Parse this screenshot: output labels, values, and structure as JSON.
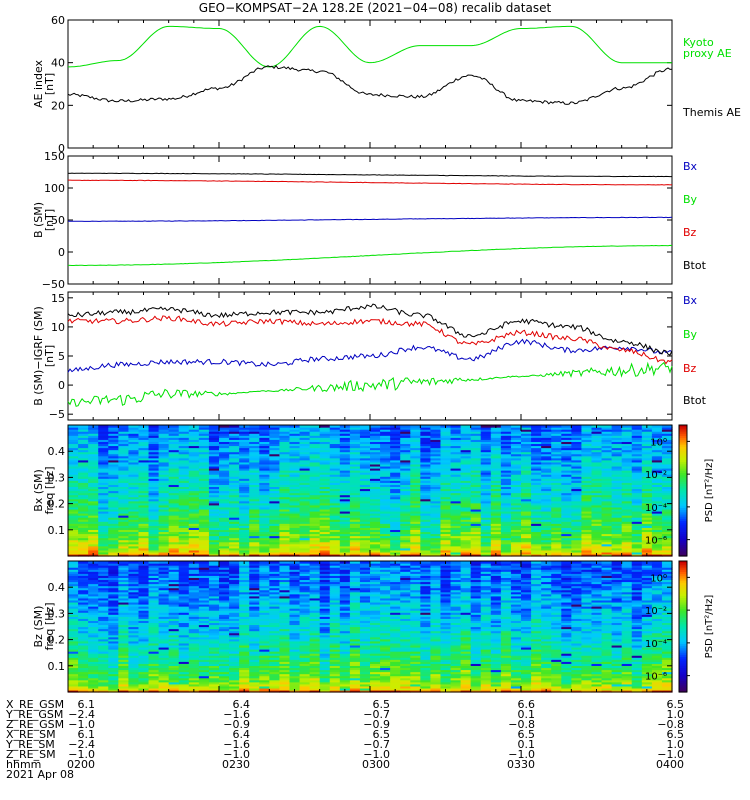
{
  "title": "GEO−KOMPSAT−2A 128.2E (2021−04−08) recalib dataset",
  "date": "2021 Apr 08",
  "colors": {
    "black": "#000000",
    "green": "#00e000",
    "blue": "#0000c0",
    "red": "#e00000"
  },
  "ephemeris": {
    "rows": [
      {
        "name": "X_RE_GSM",
        "values": [
          "6.1",
          "6.4",
          "6.5",
          "6.6",
          "6.5"
        ]
      },
      {
        "name": "Y_RE_GSM",
        "values": [
          "−2.4",
          "−1.6",
          "−0.7",
          "0.1",
          "1.0"
        ]
      },
      {
        "name": "Z_RE_GSM",
        "values": [
          "−1.0",
          "−0.9",
          "−0.9",
          "−0.8",
          "−0.8"
        ]
      },
      {
        "name": "X_RE_SM",
        "values": [
          "6.1",
          "6.4",
          "6.5",
          "6.5",
          "6.5"
        ]
      },
      {
        "name": "Y_RE_SM",
        "values": [
          "−2.4",
          "−1.6",
          "−0.7",
          "0.1",
          "1.0"
        ]
      },
      {
        "name": "Z_RE_SM",
        "values": [
          "−1.0",
          "−1.0",
          "−1.0",
          "−1.0",
          "−1.0"
        ]
      },
      {
        "name": "hhmm",
        "values": [
          "0200",
          "0230",
          "0300",
          "0330",
          "0400"
        ]
      }
    ]
  },
  "chart_data": [
    {
      "type": "line",
      "ylabel": [
        "AE index",
        "[nT]"
      ],
      "ylim": [
        0,
        60
      ],
      "yticks": [
        "0",
        "20",
        "40",
        "60"
      ],
      "x": [
        "0200",
        "0210",
        "0220",
        "0230",
        "0240",
        "0250",
        "0300",
        "0310",
        "0320",
        "0330",
        "0340",
        "0350",
        "0400"
      ],
      "series": [
        {
          "name": "Kyoto proxy AE",
          "legend": [
            "Kyoto",
            "proxy AE"
          ],
          "color": "green",
          "values": [
            38,
            41,
            57,
            56,
            38,
            57,
            40,
            48,
            48,
            56,
            57,
            40,
            40
          ]
        },
        {
          "name": "Themis AE",
          "legend": [
            "Themis AE"
          ],
          "color": "black",
          "values": [
            25,
            22,
            23,
            28,
            38,
            36,
            25,
            24,
            34,
            22,
            21,
            28,
            37
          ]
        }
      ]
    },
    {
      "type": "line",
      "ylabel": [
        "B (SM)",
        "[nT]"
      ],
      "ylim": [
        -50,
        150
      ],
      "yticks": [
        "−50",
        "0",
        "50",
        "100",
        "150"
      ],
      "x": [
        "0200",
        "0400"
      ],
      "series": [
        {
          "name": "Bx",
          "legend": [
            "Bx"
          ],
          "color": "blue",
          "values": [
            48,
            54
          ]
        },
        {
          "name": "By",
          "legend": [
            "By"
          ],
          "color": "green",
          "values": [
            -21,
            10
          ]
        },
        {
          "name": "Bz",
          "legend": [
            "Bz"
          ],
          "color": "red",
          "values": [
            112,
            105
          ]
        },
        {
          "name": "Btot",
          "legend": [
            "Btot"
          ],
          "color": "black",
          "values": [
            123,
            118
          ]
        }
      ]
    },
    {
      "type": "line",
      "ylabel": [
        "B (SM)−IGRF (SM)",
        "[nT]"
      ],
      "ylim": [
        -6,
        16
      ],
      "yticks": [
        "−5",
        "0",
        "5",
        "10",
        "15"
      ],
      "x": [
        "0200",
        "0210",
        "0220",
        "0230",
        "0240",
        "0250",
        "0300",
        "0310",
        "0320",
        "0330",
        "0340",
        "0350",
        "0400"
      ],
      "series": [
        {
          "name": "Bx",
          "legend": [
            "Bx"
          ],
          "color": "blue",
          "values": [
            2.5,
            3.5,
            4.0,
            4.0,
            3.5,
            4.5,
            5.0,
            6.5,
            4.5,
            7.5,
            6.0,
            6.5,
            5.5
          ]
        },
        {
          "name": "By",
          "legend": [
            "By"
          ],
          "color": "green",
          "values": [
            -3.0,
            -2.5,
            -1.5,
            -1.5,
            -1.0,
            -0.5,
            0.0,
            0.5,
            1.0,
            1.5,
            2.0,
            2.5,
            3.0
          ]
        },
        {
          "name": "Bz",
          "legend": [
            "Bz"
          ],
          "color": "red",
          "values": [
            11.0,
            11.0,
            11.5,
            10.5,
            11.0,
            10.5,
            11.0,
            10.5,
            7.0,
            9.0,
            8.0,
            6.0,
            4.0
          ]
        },
        {
          "name": "Btot",
          "legend": [
            "Btot"
          ],
          "color": "black",
          "values": [
            12.0,
            12.5,
            13.0,
            12.0,
            12.5,
            12.5,
            13.5,
            12.0,
            8.5,
            11.0,
            10.0,
            7.5,
            5.5
          ]
        }
      ]
    },
    {
      "type": "heatmap",
      "ylabel": [
        "Bx (SM)",
        "freq [Hz]"
      ],
      "ylim": [
        0.0,
        0.5
      ],
      "yticks": [
        "0.1",
        "0.2",
        "0.3",
        "0.4"
      ],
      "colorbar": {
        "label": "PSD [nT²/Hz]",
        "ticks": [
          "10⁰",
          "10⁻²",
          "10⁻⁴",
          "10⁻⁶"
        ],
        "range_log10": [
          -7,
          1
        ]
      },
      "x_range": [
        "0200",
        "0400"
      ],
      "trend_log10_psd": {
        "low_freq": 0.5,
        "high_freq": -4.5
      }
    },
    {
      "type": "heatmap",
      "ylabel": [
        "Bz (SM)",
        "freq [Hz]"
      ],
      "ylim": [
        0.0,
        0.5
      ],
      "yticks": [
        "0.1",
        "0.2",
        "0.3",
        "0.4"
      ],
      "colorbar": {
        "label": "PSD [nT²/Hz]",
        "ticks": [
          "10⁰",
          "10⁻²",
          "10⁻⁴",
          "10⁻⁶"
        ],
        "range_log10": [
          -7,
          1
        ]
      },
      "x_range": [
        "0200",
        "0400"
      ],
      "trend_log10_psd": {
        "low_freq": 0.5,
        "high_freq": -4.8
      }
    }
  ]
}
